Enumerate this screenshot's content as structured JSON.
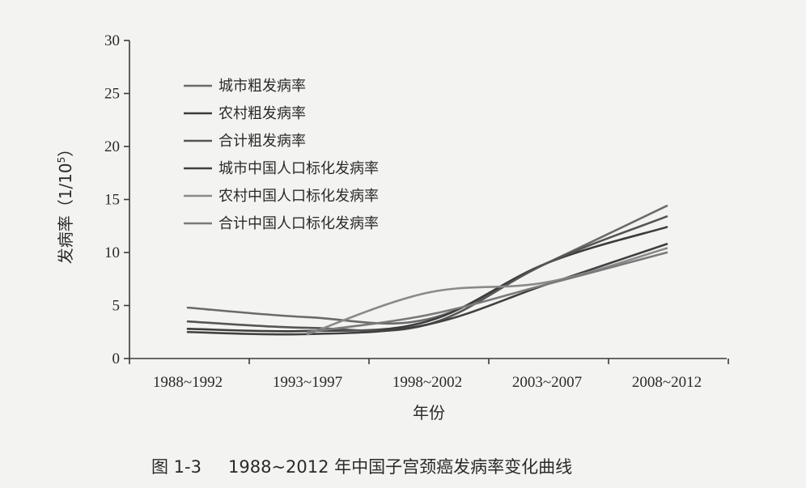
{
  "chart_data": {
    "type": "line",
    "categories": [
      "1988~1992",
      "1993~1997",
      "1998~2002",
      "2003~2007",
      "2008~2012"
    ],
    "ylim": [
      0,
      30
    ],
    "yticks": [
      0,
      5,
      10,
      15,
      20,
      25,
      30
    ],
    "xlabel": "年份",
    "ylabel": "发病率",
    "ylabel_unit": "（1/10",
    "ylabel_unit_sup": "5",
    "ylabel_unit_end": "）",
    "legend_position": "top-left",
    "series": [
      {
        "name": "城市粗发病率",
        "color": "#6a6a6a",
        "values": [
          4.8,
          3.9,
          3.7,
          9.0,
          14.4
        ]
      },
      {
        "name": "农村粗发病率",
        "color": "#3c3c3c",
        "values": [
          2.8,
          2.6,
          3.5,
          9.0,
          12.4
        ]
      },
      {
        "name": "合计粗发病率",
        "color": "#555555",
        "values": [
          3.5,
          2.9,
          3.2,
          9.0,
          13.4
        ]
      },
      {
        "name": "城市中国人口标化发病率",
        "color": "#404040",
        "values": [
          2.5,
          2.3,
          3.2,
          7.0,
          10.8
        ]
      },
      {
        "name": "农村中国人口标化发病率",
        "color": "#8a8a8a",
        "values": [
          null,
          2.3,
          6.2,
          7.2,
          10.4
        ]
      },
      {
        "name": "合计中国人口标化发病率",
        "color": "#7a7a7a",
        "values": [
          null,
          2.5,
          4.1,
          7.0,
          10.0
        ]
      }
    ]
  },
  "caption": {
    "figure_no": "图 1-3",
    "text": "1988~2012 年中国子宫颈癌发病率变化曲线"
  }
}
